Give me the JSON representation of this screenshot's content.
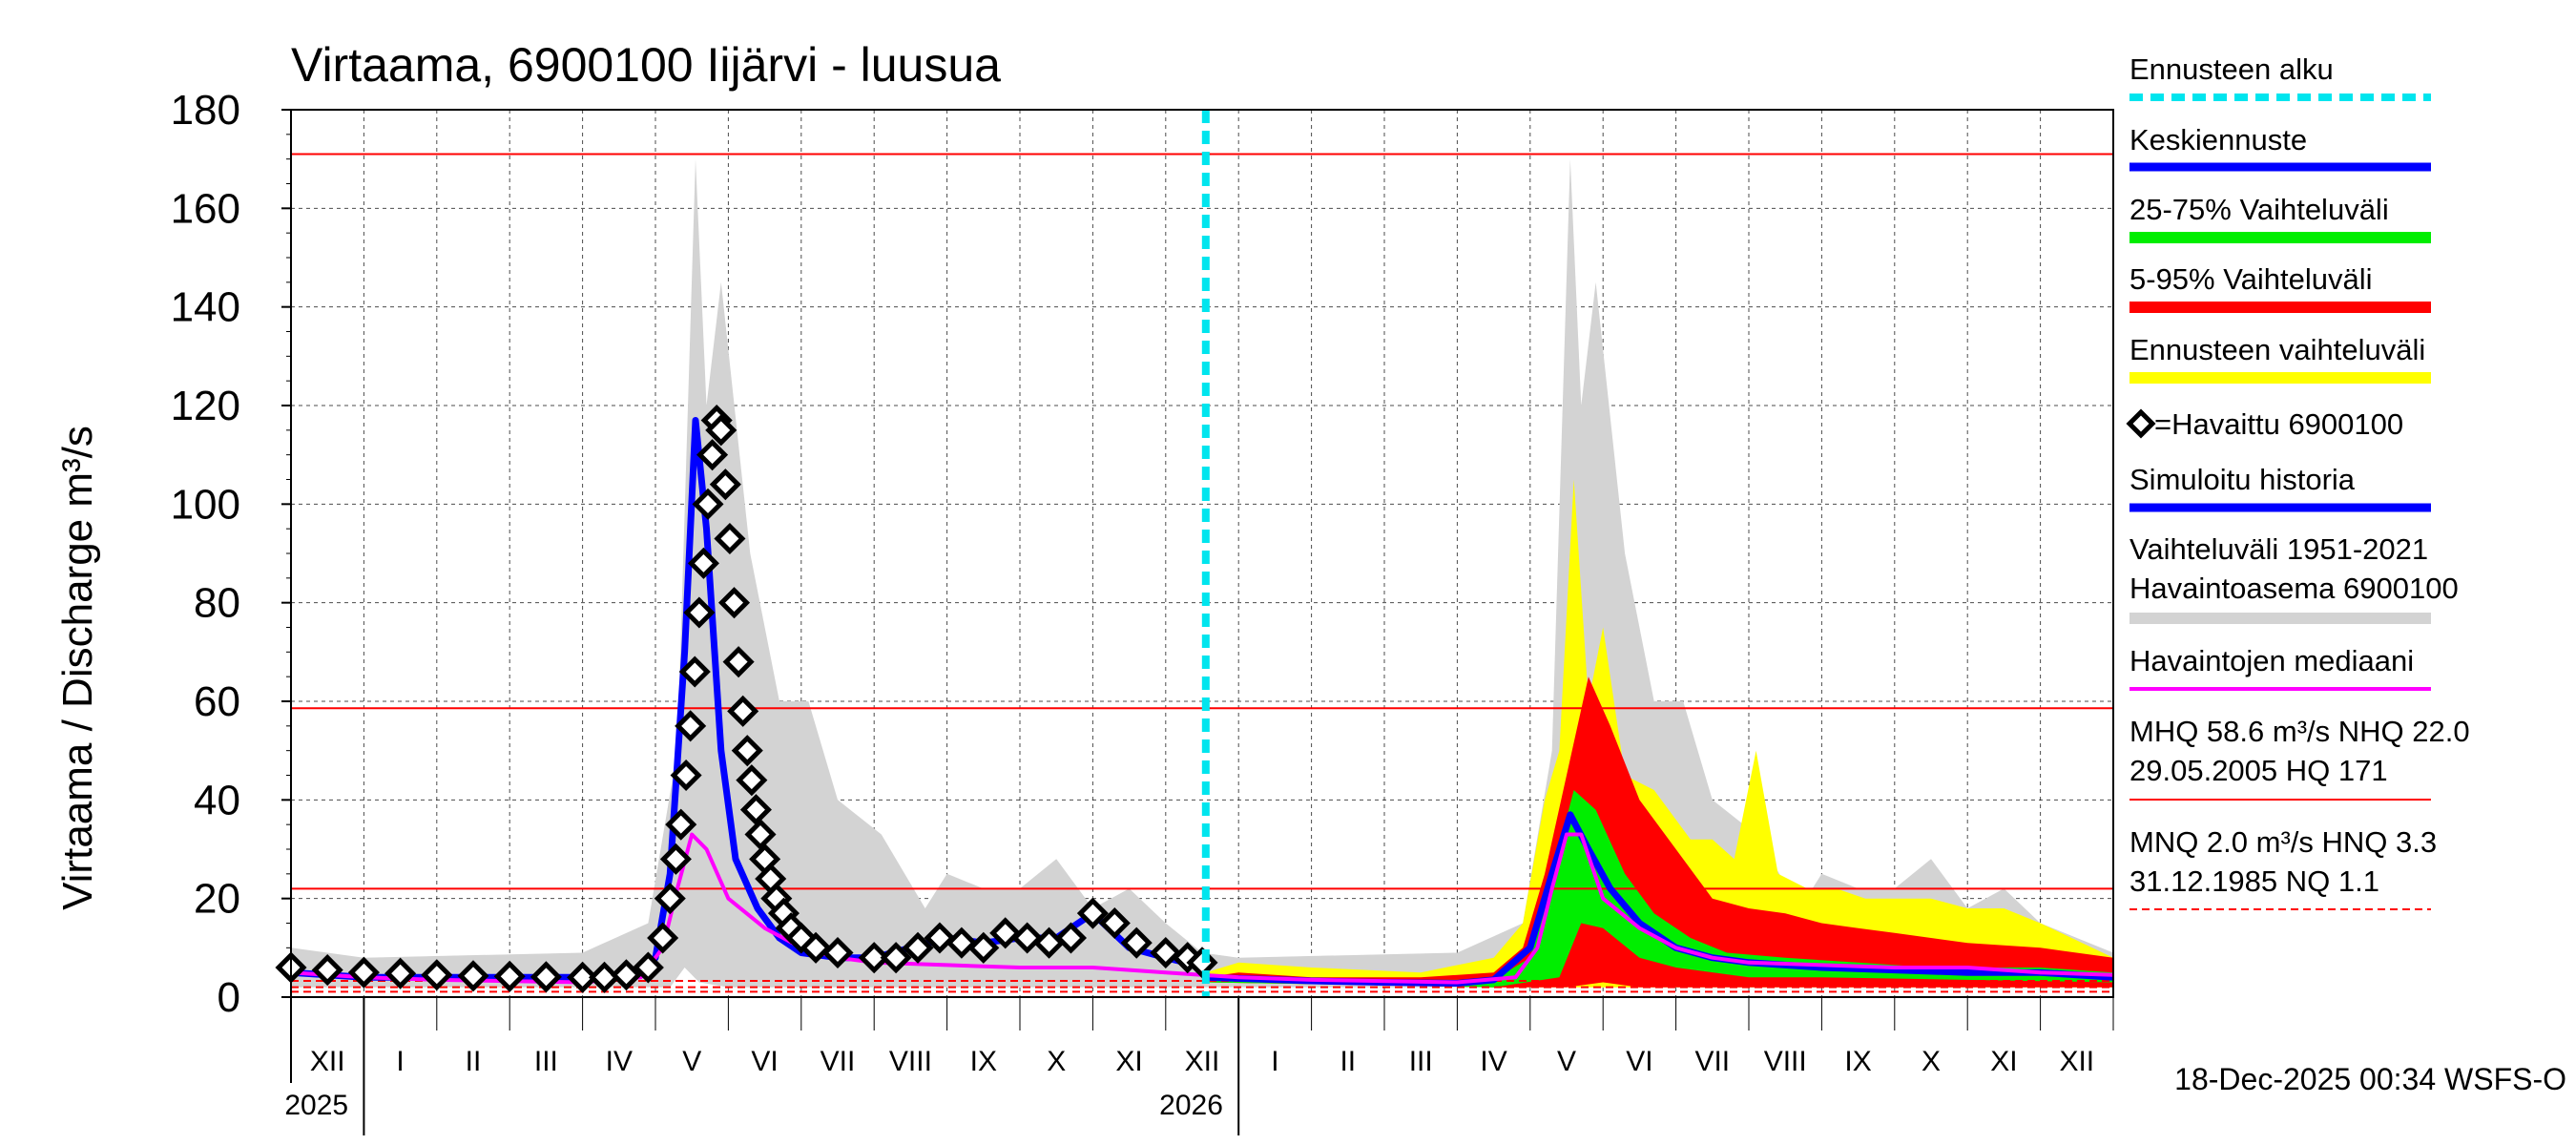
{
  "chart_data": {
    "type": "line",
    "title": "Virtaama, 6900100 Iijärvi - luusua",
    "ylabel": "Virtaama / Discharge    m³/s",
    "ylim": [
      0,
      180
    ],
    "yticks": [
      0,
      20,
      40,
      60,
      80,
      100,
      120,
      140,
      160,
      180
    ],
    "x_unit": "month index from start of Dec 2024",
    "xlim": [
      0,
      25
    ],
    "months": [
      "XII",
      "I",
      "II",
      "III",
      "IV",
      "V",
      "VI",
      "VII",
      "VIII",
      "IX",
      "X",
      "XI",
      "XII",
      "I",
      "II",
      "III",
      "IV",
      "V",
      "VI",
      "VII",
      "VIII",
      "IX",
      "X",
      "XI",
      "XII"
    ],
    "years": [
      {
        "label": "2025",
        "x": 1
      },
      {
        "label": "2026",
        "x": 13
      }
    ],
    "forecast_start_x": 12.55,
    "hlines": [
      {
        "name": "HQ",
        "value": 171,
        "style": "solid"
      },
      {
        "name": "MHQ",
        "value": 58.6,
        "style": "solid"
      },
      {
        "name": "NHQ",
        "value": 22.0,
        "style": "solid"
      },
      {
        "name": "HNQ",
        "value": 3.3,
        "style": "dashed"
      },
      {
        "name": "MNQ",
        "value": 2.0,
        "style": "dashed"
      },
      {
        "name": "NQ",
        "value": 1.1,
        "style": "dashed"
      }
    ],
    "series": [
      {
        "name": "Vaihteluväli 1951-2021 Havaintoasema 6900100",
        "kind": "band",
        "color": "#d3d3d3",
        "lower": [
          [
            0,
            2
          ],
          [
            4,
            2
          ],
          [
            5.2,
            2
          ],
          [
            5.4,
            6
          ],
          [
            5.6,
            3
          ],
          [
            6,
            2
          ],
          [
            8,
            2
          ],
          [
            12,
            2
          ],
          [
            13,
            2
          ],
          [
            17,
            2
          ],
          [
            17.4,
            3
          ],
          [
            17.5,
            6
          ],
          [
            17.7,
            3
          ],
          [
            18,
            2
          ],
          [
            25,
            2
          ]
        ],
        "upper": [
          [
            0,
            10
          ],
          [
            1,
            8
          ],
          [
            4,
            9
          ],
          [
            4.9,
            15
          ],
          [
            5.3,
            50
          ],
          [
            5.55,
            170
          ],
          [
            5.7,
            120
          ],
          [
            5.9,
            145
          ],
          [
            6.3,
            90
          ],
          [
            6.7,
            60
          ],
          [
            7.1,
            60
          ],
          [
            7.5,
            40
          ],
          [
            8.1,
            33
          ],
          [
            8.7,
            18
          ],
          [
            9,
            25
          ],
          [
            9.5,
            22
          ],
          [
            10,
            22
          ],
          [
            10.5,
            28
          ],
          [
            11,
            18
          ],
          [
            11.5,
            22
          ],
          [
            12,
            15
          ],
          [
            12.5,
            9
          ],
          [
            13,
            8
          ],
          [
            16,
            9
          ],
          [
            16.9,
            15
          ],
          [
            17.3,
            50
          ],
          [
            17.55,
            170
          ],
          [
            17.7,
            120
          ],
          [
            17.9,
            145
          ],
          [
            18.3,
            90
          ],
          [
            18.7,
            60
          ],
          [
            19.1,
            60
          ],
          [
            19.5,
            40
          ],
          [
            20.1,
            33
          ],
          [
            20.7,
            18
          ],
          [
            21,
            25
          ],
          [
            21.5,
            22
          ],
          [
            22,
            22
          ],
          [
            22.5,
            28
          ],
          [
            23,
            18
          ],
          [
            23.5,
            22
          ],
          [
            24,
            15
          ],
          [
            25,
            9
          ]
        ]
      },
      {
        "name": "Ennusteen vaihteluväli",
        "kind": "band",
        "color": "#ffff00",
        "lower": [
          [
            12.55,
            3
          ],
          [
            16.5,
            2
          ],
          [
            17.5,
            2
          ],
          [
            18.5,
            2
          ],
          [
            25,
            2
          ]
        ],
        "upper": [
          [
            12.55,
            5
          ],
          [
            13,
            7
          ],
          [
            14,
            6
          ],
          [
            15.5,
            5
          ],
          [
            16.5,
            8
          ],
          [
            16.9,
            15
          ],
          [
            17.2,
            40
          ],
          [
            17.4,
            50
          ],
          [
            17.6,
            105
          ],
          [
            17.8,
            60
          ],
          [
            18,
            75
          ],
          [
            18.3,
            45
          ],
          [
            18.7,
            42
          ],
          [
            19.2,
            32
          ],
          [
            19.5,
            32
          ],
          [
            19.8,
            28
          ],
          [
            20.1,
            50
          ],
          [
            20.4,
            25
          ],
          [
            20.8,
            22
          ],
          [
            21.2,
            22
          ],
          [
            21.6,
            20
          ],
          [
            22,
            20
          ],
          [
            22.5,
            20
          ],
          [
            23,
            18
          ],
          [
            23.5,
            18
          ],
          [
            24,
            15
          ],
          [
            25,
            8
          ]
        ]
      },
      {
        "name": "5-95% Vaihteluväli",
        "kind": "band",
        "color": "#ff0000",
        "lower": [
          [
            12.55,
            3
          ],
          [
            16.5,
            2
          ],
          [
            17.5,
            2
          ],
          [
            18,
            3
          ],
          [
            18.5,
            2
          ],
          [
            25,
            2
          ]
        ],
        "upper": [
          [
            12.55,
            4
          ],
          [
            13,
            5
          ],
          [
            14,
            4
          ],
          [
            15.5,
            4
          ],
          [
            16.5,
            5
          ],
          [
            16.9,
            10
          ],
          [
            17.2,
            25
          ],
          [
            17.5,
            45
          ],
          [
            17.8,
            65
          ],
          [
            18.1,
            55
          ],
          [
            18.5,
            40
          ],
          [
            19,
            30
          ],
          [
            19.5,
            20
          ],
          [
            20,
            18
          ],
          [
            20.5,
            17
          ],
          [
            21,
            15
          ],
          [
            21.5,
            14
          ],
          [
            22,
            13
          ],
          [
            22.5,
            12
          ],
          [
            23,
            11
          ],
          [
            24,
            10
          ],
          [
            25,
            8
          ]
        ]
      },
      {
        "name": "25-75% Vaihteluväli",
        "kind": "band",
        "color": "#00ee00",
        "lower": [
          [
            12.55,
            3
          ],
          [
            16.5,
            2
          ],
          [
            17.4,
            4
          ],
          [
            17.7,
            15
          ],
          [
            18,
            14
          ],
          [
            18.5,
            8
          ],
          [
            19,
            6
          ],
          [
            20,
            4
          ],
          [
            21,
            4
          ],
          [
            25,
            3
          ]
        ],
        "upper": [
          [
            12.55,
            4
          ],
          [
            13,
            4
          ],
          [
            14,
            3.5
          ],
          [
            15.5,
            3.5
          ],
          [
            16.5,
            3.5
          ],
          [
            17,
            8
          ],
          [
            17.3,
            25
          ],
          [
            17.6,
            42
          ],
          [
            17.9,
            38
          ],
          [
            18.3,
            25
          ],
          [
            18.7,
            17
          ],
          [
            19.2,
            12
          ],
          [
            19.7,
            9
          ],
          [
            20.5,
            8
          ],
          [
            21.5,
            7
          ],
          [
            22.5,
            6
          ],
          [
            24,
            6
          ],
          [
            25,
            5
          ]
        ]
      },
      {
        "name": "Keskiennuste",
        "kind": "line",
        "color": "#0000ff",
        "width": 7,
        "points": [
          [
            12.55,
            4
          ],
          [
            13,
            3.8
          ],
          [
            14,
            3.3
          ],
          [
            15,
            3
          ],
          [
            16,
            2.8
          ],
          [
            16.5,
            3.5
          ],
          [
            17,
            10
          ],
          [
            17.3,
            25
          ],
          [
            17.55,
            37
          ],
          [
            17.8,
            30
          ],
          [
            18.1,
            22
          ],
          [
            18.5,
            15
          ],
          [
            19,
            10
          ],
          [
            19.5,
            8
          ],
          [
            20,
            7
          ],
          [
            21,
            6
          ],
          [
            22,
            5.5
          ],
          [
            23,
            5
          ],
          [
            24,
            5
          ],
          [
            25,
            4
          ]
        ]
      },
      {
        "name": "Simuloitu historia",
        "kind": "line",
        "color": "#0000ff",
        "width": 7,
        "points": [
          [
            0,
            5
          ],
          [
            1,
            4
          ],
          [
            2,
            4
          ],
          [
            3,
            4
          ],
          [
            4,
            4
          ],
          [
            4.8,
            4.5
          ],
          [
            5,
            8
          ],
          [
            5.2,
            25
          ],
          [
            5.4,
            70
          ],
          [
            5.55,
            117
          ],
          [
            5.7,
            95
          ],
          [
            5.9,
            50
          ],
          [
            6.1,
            28
          ],
          [
            6.4,
            18
          ],
          [
            6.7,
            12
          ],
          [
            7,
            9
          ],
          [
            7.5,
            8
          ],
          [
            8,
            8
          ],
          [
            8.5,
            10
          ],
          [
            9,
            12
          ],
          [
            9.5,
            11
          ],
          [
            10,
            12
          ],
          [
            10.5,
            12
          ],
          [
            11,
            17
          ],
          [
            11.5,
            10
          ],
          [
            12,
            8
          ],
          [
            12.55,
            6
          ]
        ]
      },
      {
        "name": "Havaintojen mediaani",
        "kind": "line",
        "color": "#ff00ff",
        "width": 4,
        "points": [
          [
            0,
            5
          ],
          [
            1,
            4
          ],
          [
            2,
            3.5
          ],
          [
            4,
            3
          ],
          [
            4.8,
            4
          ],
          [
            5.1,
            10
          ],
          [
            5.3,
            22
          ],
          [
            5.5,
            33
          ],
          [
            5.7,
            30
          ],
          [
            6,
            20
          ],
          [
            6.5,
            14
          ],
          [
            7,
            10
          ],
          [
            7.5,
            8
          ],
          [
            8,
            7
          ],
          [
            9,
            6.5
          ],
          [
            10,
            6
          ],
          [
            11,
            6
          ],
          [
            12,
            5
          ],
          [
            13,
            4
          ],
          [
            14,
            3.5
          ],
          [
            16,
            3
          ],
          [
            16.8,
            4
          ],
          [
            17.1,
            10
          ],
          [
            17.3,
            22
          ],
          [
            17.5,
            33
          ],
          [
            17.7,
            33
          ],
          [
            18,
            20
          ],
          [
            18.5,
            14
          ],
          [
            19,
            10
          ],
          [
            19.5,
            8
          ],
          [
            20,
            7
          ],
          [
            21,
            6.5
          ],
          [
            22,
            6
          ],
          [
            23,
            6
          ],
          [
            24,
            5
          ],
          [
            25,
            4.5
          ]
        ]
      },
      {
        "name": "Havaittu 6900100",
        "kind": "markers",
        "color": "#000000",
        "points": [
          [
            0,
            6
          ],
          [
            0.5,
            5.5
          ],
          [
            1,
            5
          ],
          [
            1.5,
            4.8
          ],
          [
            2,
            4.5
          ],
          [
            2.5,
            4.3
          ],
          [
            3,
            4.2
          ],
          [
            3.5,
            4.1
          ],
          [
            4,
            4
          ],
          [
            4.3,
            4
          ],
          [
            4.6,
            4.5
          ],
          [
            4.9,
            6
          ],
          [
            5.1,
            12
          ],
          [
            5.2,
            20
          ],
          [
            5.28,
            28
          ],
          [
            5.35,
            35
          ],
          [
            5.42,
            45
          ],
          [
            5.48,
            55
          ],
          [
            5.54,
            66
          ],
          [
            5.6,
            78
          ],
          [
            5.66,
            88
          ],
          [
            5.72,
            100
          ],
          [
            5.78,
            110
          ],
          [
            5.84,
            117
          ],
          [
            5.9,
            115
          ],
          [
            5.96,
            104
          ],
          [
            6.02,
            93
          ],
          [
            6.08,
            80
          ],
          [
            6.14,
            68
          ],
          [
            6.2,
            58
          ],
          [
            6.26,
            50
          ],
          [
            6.32,
            44
          ],
          [
            6.38,
            38
          ],
          [
            6.44,
            33
          ],
          [
            6.5,
            28
          ],
          [
            6.58,
            24
          ],
          [
            6.66,
            20
          ],
          [
            6.76,
            17
          ],
          [
            6.86,
            14
          ],
          [
            7,
            12
          ],
          [
            7.2,
            10
          ],
          [
            7.5,
            9
          ],
          [
            8,
            8
          ],
          [
            8.3,
            8
          ],
          [
            8.6,
            10
          ],
          [
            8.9,
            12
          ],
          [
            9.2,
            11
          ],
          [
            9.5,
            10
          ],
          [
            9.8,
            13
          ],
          [
            10.1,
            12
          ],
          [
            10.4,
            11
          ],
          [
            10.7,
            12
          ],
          [
            11,
            17
          ],
          [
            11.3,
            15
          ],
          [
            11.6,
            11
          ],
          [
            12,
            9
          ],
          [
            12.3,
            8
          ],
          [
            12.5,
            7
          ]
        ]
      }
    ]
  },
  "legend": {
    "forecast_start": "Ennusteen alku",
    "mean_forecast": "Keskiennuste",
    "range_25_75": "25-75% Vaihteluväli",
    "range_5_95": "5-95% Vaihteluväli",
    "forecast_range": "Ennusteen vaihteluväli",
    "observed": "=Havaittu 6900100",
    "simulated": "Simuloitu historia",
    "hist_range_1": "Vaihteluväli 1951-2021",
    "hist_range_2": "Havaintoasema 6900100",
    "median": "Havaintojen mediaani",
    "stats_1": "MHQ 58.6 m³/s NHQ 22.0",
    "stats_2": "29.05.2005 HQ  171",
    "stats_3": "MNQ  2.0 m³/s HNQ  3.3",
    "stats_4": "31.12.1985 NQ  1.1"
  },
  "colors": {
    "grid": "#000000",
    "hline": "#ff0000",
    "forecast_marker": "#00e5ee",
    "hist_band": "#d3d3d3",
    "forecast_band": "#ffff00",
    "band_5_95": "#ff0000",
    "band_25_75": "#00ee00",
    "mean_line": "#0000ff",
    "median_line": "#ff00ff"
  },
  "timestamp": "18-Dec-2025 00:34 WSFS-O"
}
